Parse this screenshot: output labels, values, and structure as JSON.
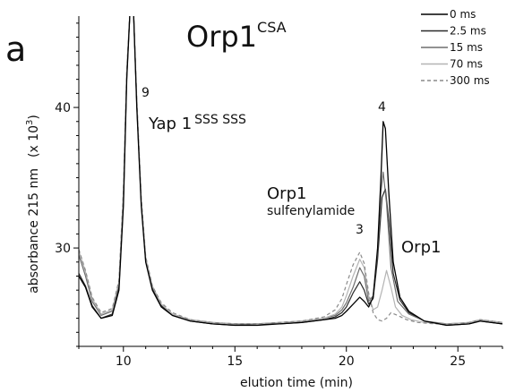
{
  "panel_label": "a",
  "title": {
    "base": "Orp1",
    "sup": "CSA"
  },
  "annotations": {
    "peak9_number": "9",
    "peak9_label": "Yap 1",
    "peak9_sup": "SSS SSS",
    "peak3_label": "Orp1",
    "peak3_sublabel": "sulfenylamide",
    "peak3_number": "3",
    "peak4_number": "4",
    "peak4_label": "Orp1"
  },
  "chart_data": {
    "type": "line",
    "xlabel": "elution time (min)",
    "ylabel_main": "absorbance 215 nm",
    "ylabel_unit": "(x 10",
    "ylabel_unit_sup": "3",
    "ylabel_unit_close": ")",
    "xlim": [
      8,
      27
    ],
    "ylim": [
      23,
      46.5
    ],
    "x_ticks": [
      10,
      15,
      20,
      25
    ],
    "x_tick_labels": [
      "10",
      "15",
      "20",
      "25"
    ],
    "y_ticks": [
      30,
      40
    ],
    "y_tick_labels": [
      "30",
      "40"
    ],
    "legend_placement": "top-right",
    "series": [
      {
        "name": "0 ms",
        "color": "#000000",
        "dash": "",
        "width": 1.3,
        "x": [
          8.0,
          8.3,
          8.6,
          9.0,
          9.5,
          9.8,
          10.0,
          10.15,
          10.3,
          10.45,
          10.6,
          10.8,
          11.0,
          11.3,
          11.7,
          12.2,
          13.0,
          14.0,
          15.0,
          16.0,
          17.0,
          18.0,
          19.0,
          19.5,
          19.8,
          20.0,
          20.3,
          20.6,
          20.8,
          21.0,
          21.2,
          21.4,
          21.55,
          21.65,
          21.75,
          21.9,
          22.1,
          22.4,
          22.8,
          23.5,
          24.5,
          25.5,
          26.0,
          27.0
        ],
        "y": [
          28.0,
          27.2,
          25.8,
          25.0,
          25.2,
          27.0,
          33.0,
          42.0,
          47.0,
          47.0,
          40.0,
          33.0,
          29.0,
          27.0,
          25.8,
          25.2,
          24.8,
          24.6,
          24.5,
          24.5,
          24.6,
          24.7,
          24.9,
          25.0,
          25.2,
          25.5,
          26.0,
          26.5,
          26.2,
          25.8,
          26.5,
          30.0,
          35.0,
          39.0,
          38.5,
          34.0,
          29.0,
          26.5,
          25.5,
          24.8,
          24.5,
          24.6,
          24.8,
          24.6
        ]
      },
      {
        "name": "2.5 ms",
        "color": "#2a2a2a",
        "dash": "",
        "width": 1.2,
        "x": [
          8.0,
          8.3,
          8.6,
          9.0,
          9.5,
          9.8,
          10.0,
          10.15,
          10.3,
          10.45,
          10.6,
          10.8,
          11.0,
          11.3,
          11.7,
          12.2,
          13.0,
          14.0,
          15.0,
          16.0,
          17.0,
          18.0,
          19.0,
          19.5,
          19.8,
          20.0,
          20.3,
          20.6,
          20.8,
          21.0,
          21.2,
          21.4,
          21.6,
          21.75,
          21.9,
          22.1,
          22.4,
          22.8,
          23.5,
          24.5,
          25.5,
          26.0,
          27.0
        ],
        "y": [
          28.2,
          27.3,
          25.9,
          25.0,
          25.3,
          27.2,
          33.3,
          42.2,
          47.0,
          47.0,
          40.2,
          33.2,
          29.1,
          27.1,
          25.9,
          25.2,
          24.8,
          24.6,
          24.5,
          24.6,
          24.6,
          24.7,
          24.9,
          25.1,
          25.4,
          25.8,
          26.8,
          27.6,
          27.0,
          26.0,
          26.4,
          29.2,
          33.6,
          34.2,
          32.0,
          28.2,
          26.3,
          25.4,
          24.8,
          24.5,
          24.6,
          24.8,
          24.6
        ]
      },
      {
        "name": "15 ms",
        "color": "#6e6e6e",
        "dash": "",
        "width": 1.2,
        "x": [
          8.0,
          8.3,
          8.6,
          9.0,
          9.5,
          9.8,
          10.0,
          10.15,
          10.3,
          10.45,
          10.6,
          10.8,
          11.0,
          11.3,
          11.7,
          12.2,
          13.0,
          14.0,
          15.0,
          16.0,
          17.0,
          18.0,
          19.0,
          19.5,
          19.8,
          20.0,
          20.3,
          20.6,
          20.8,
          21.0,
          21.2,
          21.4,
          21.55,
          21.65,
          21.8,
          22.0,
          22.3,
          22.8,
          23.5,
          24.5,
          25.5,
          26.0,
          27.0
        ],
        "y": [
          29.5,
          28.0,
          26.2,
          25.2,
          25.5,
          27.5,
          33.8,
          42.5,
          47.0,
          47.0,
          40.4,
          33.4,
          29.2,
          27.2,
          26.0,
          25.3,
          24.9,
          24.7,
          24.6,
          24.6,
          24.7,
          24.8,
          25.0,
          25.2,
          25.6,
          26.1,
          27.2,
          28.6,
          28.0,
          26.2,
          26.6,
          29.6,
          34.0,
          35.4,
          33.2,
          28.6,
          26.2,
          25.3,
          24.8,
          24.6,
          24.7,
          24.9,
          24.7
        ]
      },
      {
        "name": "70 ms",
        "color": "#b4b4b4",
        "dash": "",
        "width": 1.2,
        "x": [
          8.0,
          8.3,
          8.6,
          9.0,
          9.5,
          9.8,
          10.0,
          10.15,
          10.3,
          10.45,
          10.6,
          10.8,
          11.0,
          11.3,
          11.7,
          12.2,
          13.0,
          14.0,
          15.0,
          16.0,
          17.0,
          18.0,
          19.0,
          19.5,
          19.8,
          20.0,
          20.3,
          20.6,
          20.8,
          21.0,
          21.2,
          21.4,
          21.6,
          21.8,
          22.0,
          22.2,
          22.5,
          22.9,
          23.5,
          24.5,
          25.5,
          26.0,
          27.0
        ],
        "y": [
          29.8,
          28.3,
          26.4,
          25.3,
          25.6,
          27.6,
          34.0,
          42.6,
          47.0,
          47.0,
          40.5,
          33.5,
          29.3,
          27.3,
          26.0,
          25.3,
          24.9,
          24.7,
          24.6,
          24.6,
          24.7,
          24.8,
          25.0,
          25.3,
          25.8,
          26.6,
          28.0,
          29.2,
          28.6,
          26.6,
          25.6,
          25.8,
          27.0,
          28.4,
          27.2,
          25.8,
          25.2,
          24.9,
          24.7,
          24.6,
          24.7,
          24.9,
          24.7
        ]
      },
      {
        "name": "300 ms",
        "color": "#8a8a8a",
        "dash": "4,3",
        "width": 1.2,
        "x": [
          8.0,
          8.3,
          8.6,
          9.0,
          9.5,
          9.8,
          10.0,
          10.15,
          10.3,
          10.45,
          10.6,
          10.8,
          11.0,
          11.3,
          11.7,
          12.2,
          13.0,
          14.0,
          15.0,
          16.0,
          17.0,
          18.0,
          19.0,
          19.5,
          19.8,
          20.0,
          20.3,
          20.6,
          20.8,
          21.0,
          21.2,
          21.4,
          21.6,
          21.8,
          22.0,
          22.3,
          22.7,
          23.2,
          24.0,
          25.0,
          25.5,
          26.0,
          27.0
        ],
        "y": [
          29.9,
          28.4,
          26.5,
          25.4,
          25.7,
          27.7,
          34.1,
          42.7,
          47.0,
          47.0,
          40.6,
          33.6,
          29.4,
          27.3,
          26.1,
          25.4,
          24.9,
          24.7,
          24.6,
          24.6,
          24.7,
          24.8,
          25.1,
          25.6,
          26.4,
          27.4,
          28.8,
          29.7,
          28.9,
          26.8,
          25.4,
          24.9,
          24.8,
          25.0,
          25.4,
          25.2,
          24.9,
          24.7,
          24.6,
          24.6,
          24.7,
          24.9,
          24.7
        ]
      }
    ]
  }
}
